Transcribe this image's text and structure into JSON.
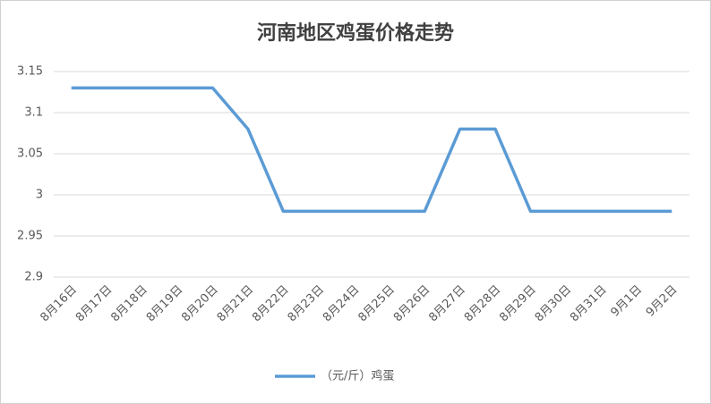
{
  "chart_data": {
    "type": "line",
    "title": "河南地区鸡蛋价格走势",
    "categories": [
      "8月16日",
      "8月17日",
      "8月18日",
      "8月19日",
      "8月20日",
      "8月21日",
      "8月22日",
      "8月23日",
      "8月24日",
      "8月25日",
      "8月26日",
      "8月27日",
      "8月28日",
      "8月29日",
      "8月30日",
      "8月31日",
      "9月1日",
      "9月2日"
    ],
    "series": [
      {
        "name": "（元/斤）鸡蛋",
        "color": "#5b9bd5",
        "values": [
          3.13,
          3.13,
          3.13,
          3.13,
          3.13,
          3.08,
          2.98,
          2.98,
          2.98,
          2.98,
          2.98,
          3.08,
          3.08,
          2.98,
          2.98,
          2.98,
          2.98,
          2.98
        ]
      }
    ],
    "ylim": [
      2.9,
      3.15
    ],
    "yticks": [
      2.9,
      2.95,
      3,
      3.05,
      3.1,
      3.15
    ],
    "grid": true,
    "legend": "bottom"
  }
}
